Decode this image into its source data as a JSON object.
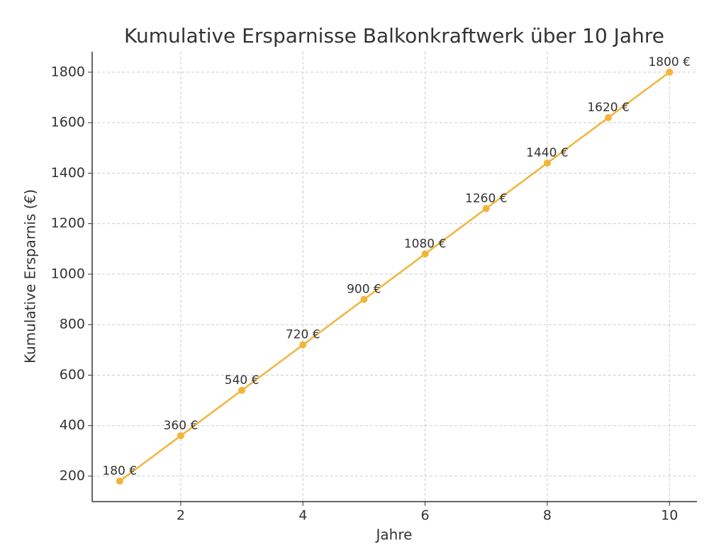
{
  "chart_data": {
    "type": "line",
    "title": "Kumulative Ersparnisse Balkonkraftwerk über 10 Jahre",
    "x_label": "Jahre",
    "y_label": "Kumulative Ersparnis (€)",
    "x": [
      1,
      2,
      3,
      4,
      5,
      6,
      7,
      8,
      9,
      10
    ],
    "series": [
      {
        "color": "#f2b53a",
        "values": [
          180,
          360,
          540,
          720,
          900,
          1080,
          1260,
          1440,
          1620,
          1800
        ],
        "value_labels": [
          "180 €",
          "360 €",
          "540 €",
          "720 €",
          "900 €",
          "1080 €",
          "1260 €",
          "1440 €",
          "1620 €",
          "1800 €"
        ]
      }
    ],
    "xlim": [
      0.55,
      10.45
    ],
    "xticks": [
      2,
      4,
      6,
      8,
      10
    ],
    "ylim": [
      99,
      1881
    ],
    "yticks": [
      200,
      400,
      600,
      800,
      1000,
      1200,
      1400,
      1600,
      1800
    ],
    "grid": true
  }
}
